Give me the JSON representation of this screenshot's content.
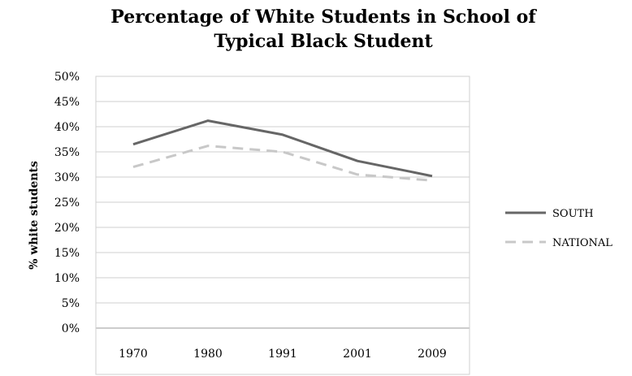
{
  "chart_data": {
    "type": "line",
    "title_line1": "Percentage of White Students in School of",
    "title_line2": "Typical Black Student",
    "ylabel": "% white students",
    "xlabel": "",
    "categories": [
      "1970",
      "1980",
      "1991",
      "2001",
      "2009"
    ],
    "ylim": [
      0,
      50
    ],
    "yticks": [
      "0%",
      "5%",
      "10%",
      "15%",
      "20%",
      "25%",
      "30%",
      "35%",
      "40%",
      "45%",
      "50%"
    ],
    "grid": true,
    "legend_position": "right",
    "series": [
      {
        "name": "SOUTH",
        "values": [
          36.5,
          41.2,
          38.4,
          33.2,
          30.2
        ],
        "color": "#666666",
        "style": "solid"
      },
      {
        "name": "NATIONAL",
        "values": [
          32.0,
          36.2,
          35.0,
          30.5,
          29.3
        ],
        "color": "#c8c8c8",
        "style": "dashed"
      }
    ]
  }
}
